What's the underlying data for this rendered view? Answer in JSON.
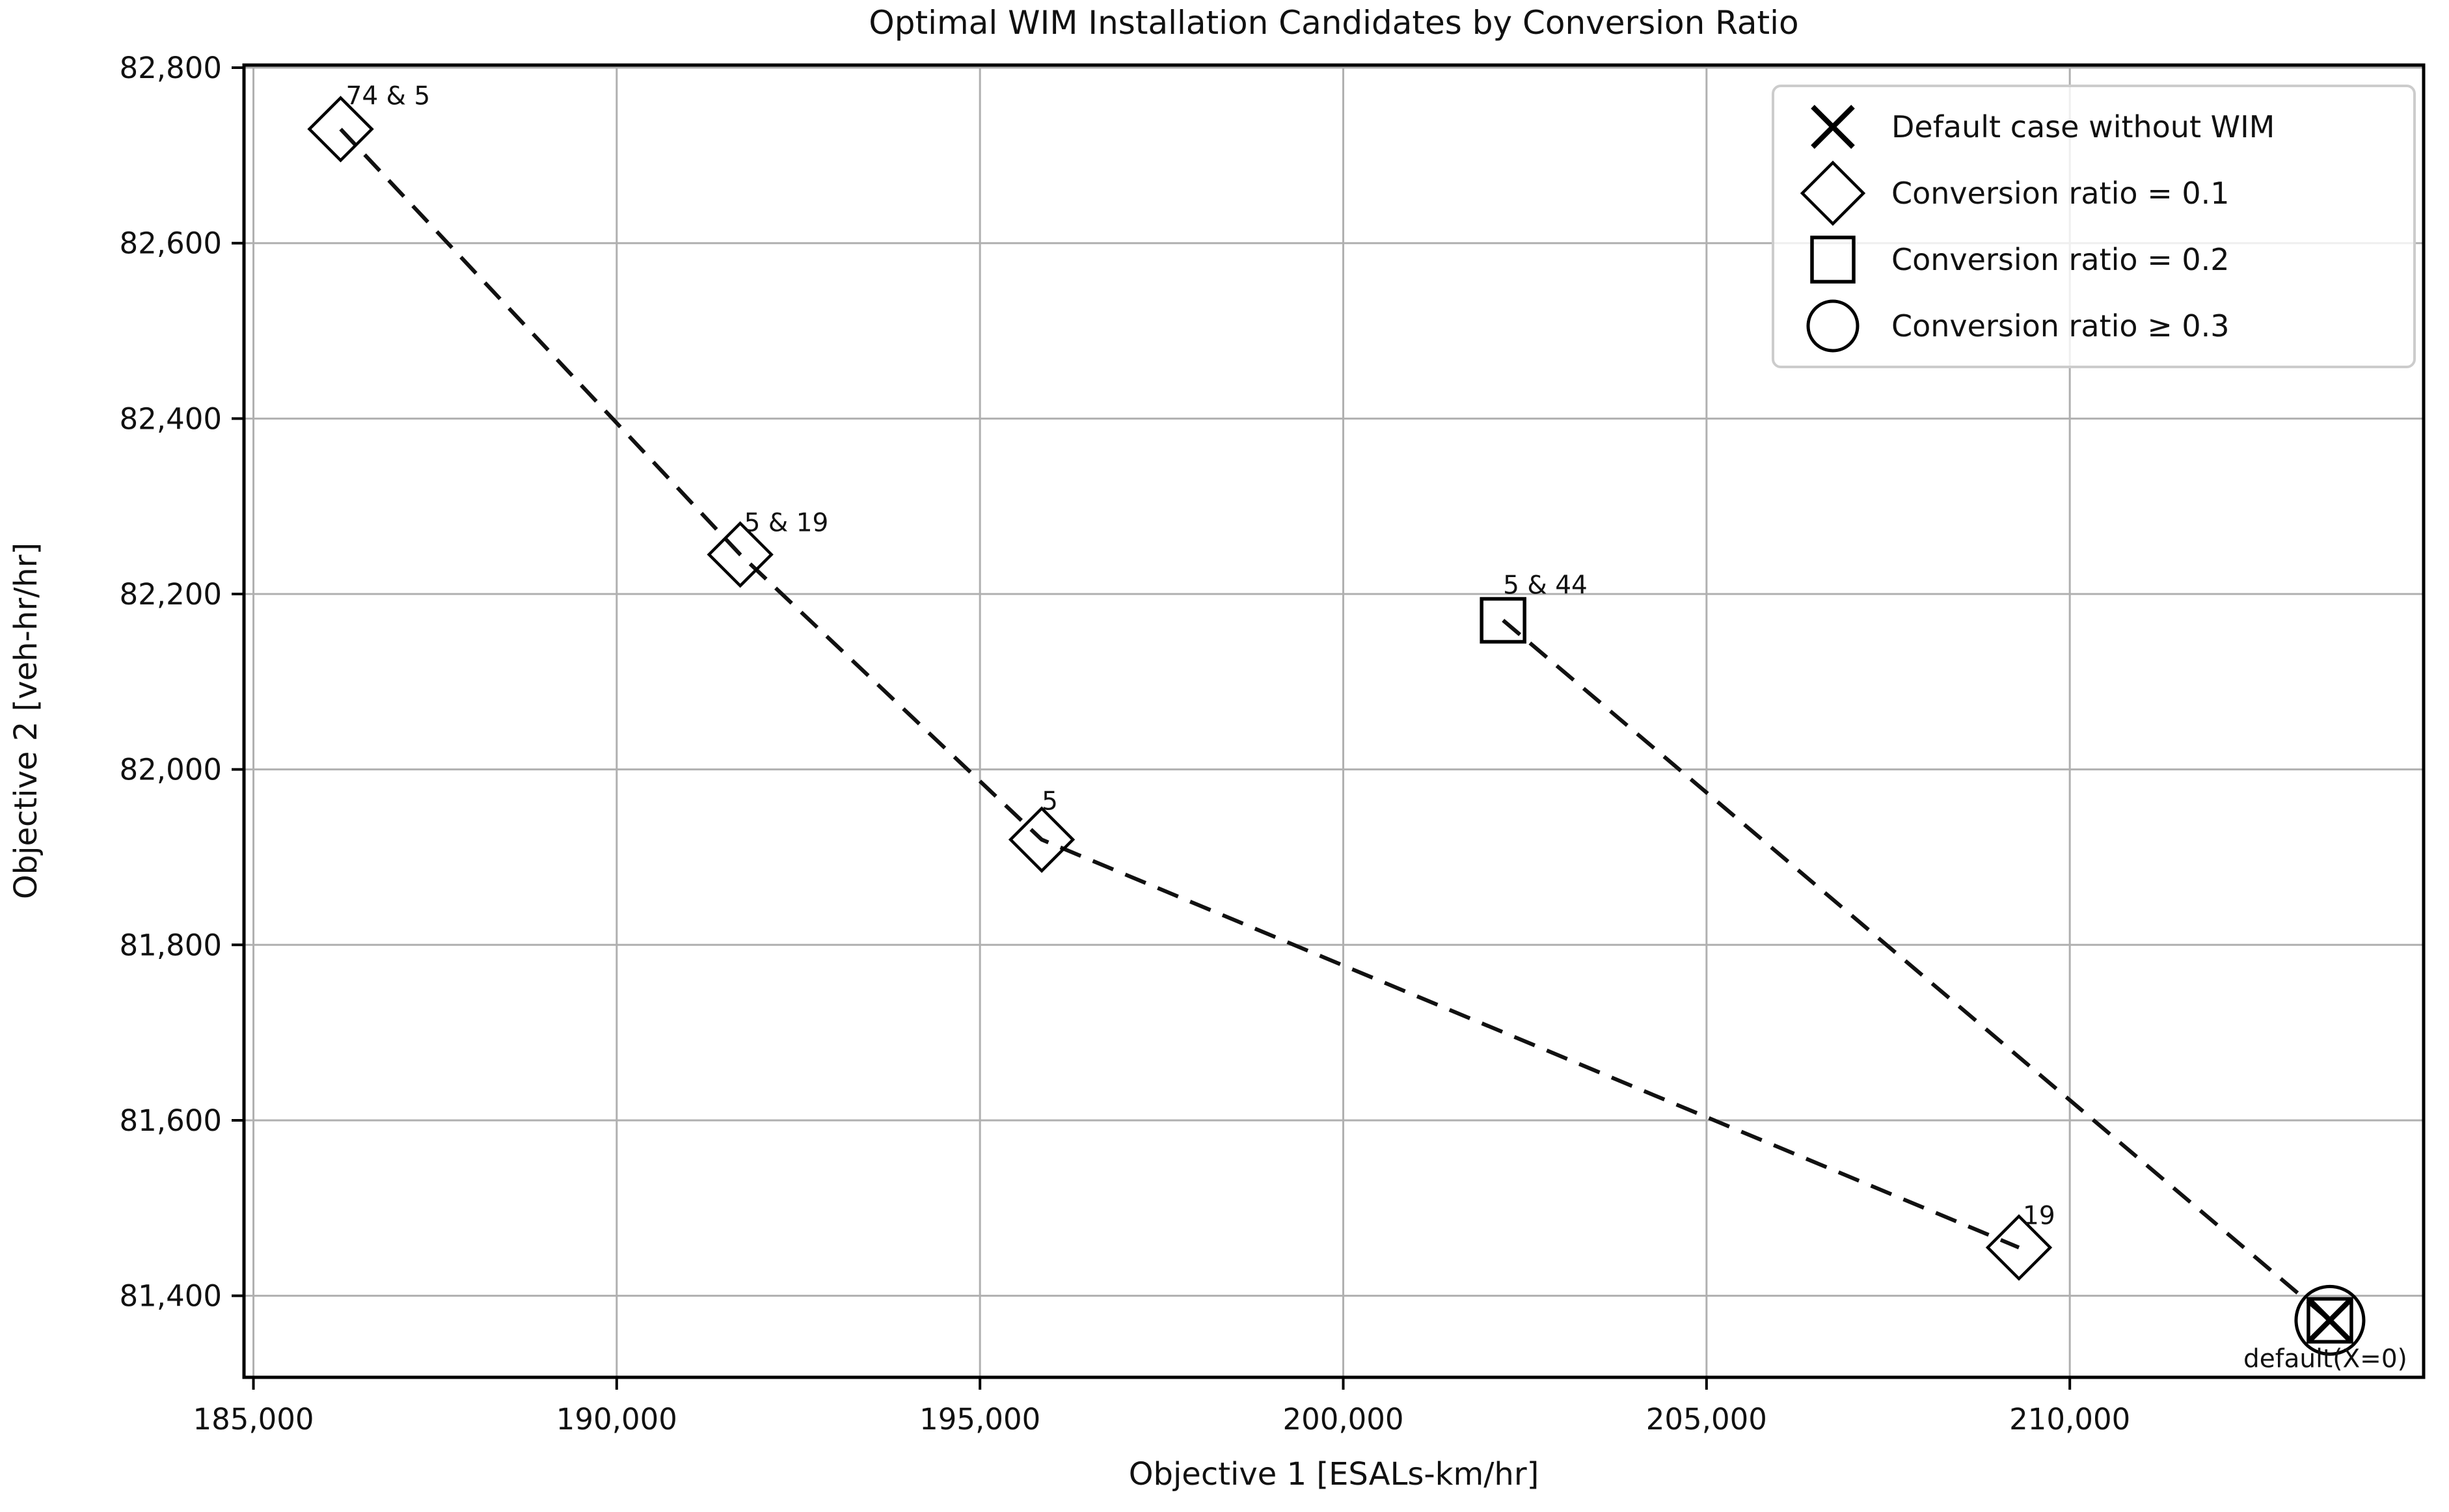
{
  "chart_data": {
    "type": "scatter",
    "title": "Optimal WIM Installation Candidates by Conversion Ratio",
    "xlabel": "Objective 1 [ESALs-km/hr]",
    "ylabel": "Objective 2 [veh-hr/hr]",
    "xlim": [
      184870,
      214870
    ],
    "ylim": [
      81307,
      82803
    ],
    "grid": true,
    "grid_color": "#b0b0b0",
    "spine_color": "#000000",
    "line_color": "#111111",
    "x_ticks": [
      {
        "value": 185000,
        "label": "185,000"
      },
      {
        "value": 190000,
        "label": "190,000"
      },
      {
        "value": 195000,
        "label": "195,000"
      },
      {
        "value": 200000,
        "label": "200,000"
      },
      {
        "value": 205000,
        "label": "205,000"
      },
      {
        "value": 210000,
        "label": "210,000"
      }
    ],
    "y_ticks": [
      {
        "value": 81400,
        "label": "81,400"
      },
      {
        "value": 81600,
        "label": "81,600"
      },
      {
        "value": 81800,
        "label": "81,800"
      },
      {
        "value": 82000,
        "label": "82,000"
      },
      {
        "value": 82200,
        "label": "82,200"
      },
      {
        "value": 82400,
        "label": "82,400"
      },
      {
        "value": 82600,
        "label": "82,600"
      },
      {
        "value": 82800,
        "label": "82,800"
      }
    ],
    "series": [
      {
        "name": "Conversion ratio = 0.1",
        "marker": "diamond",
        "linestyle": "dashed",
        "points": [
          {
            "x": 186200,
            "y": 82730,
            "label": "74 & 5",
            "label_dx": 8,
            "label_dy": -38,
            "label_anchor": "start"
          },
          {
            "x": 191700,
            "y": 82245,
            "label": "5 & 19",
            "label_dx": 6,
            "label_dy": -36,
            "label_anchor": "start"
          },
          {
            "x": 195850,
            "y": 81920,
            "label": "5",
            "label_dx": 0,
            "label_dy": -46,
            "label_anchor": "start"
          },
          {
            "x": 209300,
            "y": 81455,
            "label": "19",
            "label_dx": 6,
            "label_dy": -36,
            "label_anchor": "start"
          }
        ]
      },
      {
        "name": "Conversion ratio = 0.2",
        "marker": "square",
        "linestyle": "dashed",
        "points": [
          {
            "x": 202200,
            "y": 82170,
            "label": "5 & 44",
            "label_dx": 0,
            "label_dy": -41,
            "label_anchor": "start"
          },
          {
            "x": 213580,
            "y": 81372
          }
        ]
      },
      {
        "name": "Conversion ratio ≥ 0.3",
        "marker": "circle",
        "linestyle": "none",
        "points": [
          {
            "x": 213580,
            "y": 81372
          }
        ]
      },
      {
        "name": "Default case without WIM",
        "marker": "x",
        "linestyle": "none",
        "points": [
          {
            "x": 213580,
            "y": 81372,
            "label": "default(X=0)",
            "label_dx": -7,
            "label_dy": 72,
            "label_anchor": "middle"
          }
        ]
      }
    ],
    "legend": {
      "items": [
        {
          "marker": "x",
          "label": "Default case without WIM"
        },
        {
          "marker": "diamond",
          "label": "Conversion ratio = 0.1"
        },
        {
          "marker": "square",
          "label": "Conversion ratio = 0.2"
        },
        {
          "marker": "circle",
          "label": "Conversion ratio ≥ 0.3"
        }
      ]
    }
  }
}
